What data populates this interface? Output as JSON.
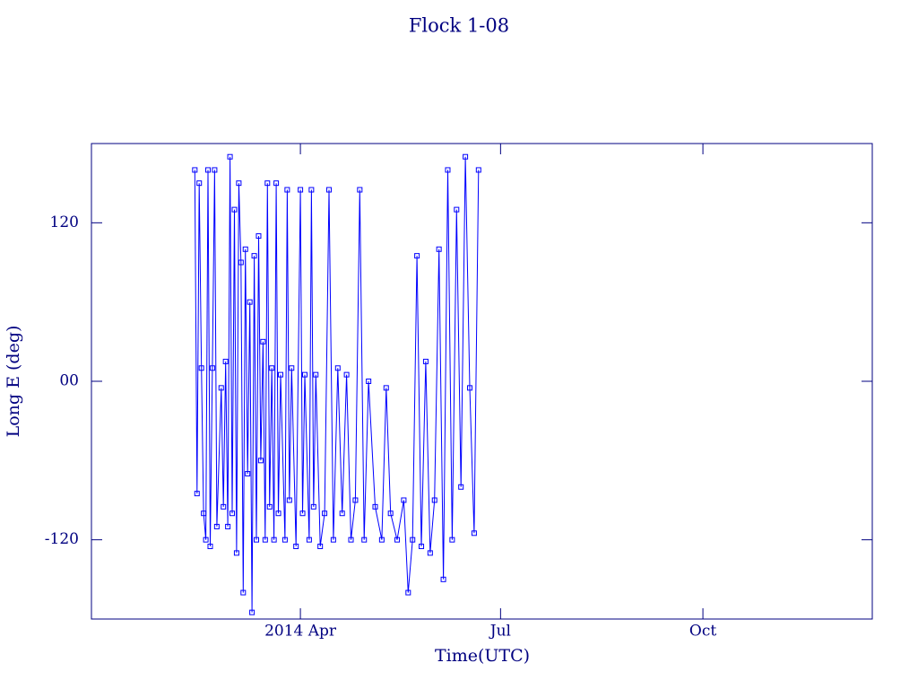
{
  "chart_data": {
    "type": "line",
    "title": "Flock 1-08",
    "x_label": "Time(UTC)",
    "y_label": "Long E (deg)",
    "color": "#0000ff",
    "axis_color": "#000080",
    "xlim": [
      "2013-12-27",
      "2014-12-17"
    ],
    "xticks": [
      {
        "value": "2014-04-01",
        "label": "2014 Apr"
      },
      {
        "value": "2014-07-01",
        "label": "Jul"
      },
      {
        "value": "2014-10-01",
        "label": "Oct"
      }
    ],
    "ylim": [
      -180,
      180
    ],
    "yticks": [
      -120,
      {
        "value": 0,
        "label": "00"
      },
      120
    ],
    "x": [
      "2014-02-12",
      "2014-02-13",
      "2014-02-14",
      "2014-02-15",
      "2014-02-16",
      "2014-02-17",
      "2014-02-18",
      "2014-02-19",
      "2014-02-20",
      "2014-02-21",
      "2014-02-22",
      "2014-02-24",
      "2014-02-25",
      "2014-02-26",
      "2014-02-27",
      "2014-02-28",
      "2014-03-01",
      "2014-03-02",
      "2014-03-03",
      "2014-03-04",
      "2014-03-05",
      "2014-03-06",
      "2014-03-07",
      "2014-03-08",
      "2014-03-09",
      "2014-03-10",
      "2014-03-11",
      "2014-03-12",
      "2014-03-13",
      "2014-03-14",
      "2014-03-15",
      "2014-03-16",
      "2014-03-17",
      "2014-03-18",
      "2014-03-19",
      "2014-03-20",
      "2014-03-21",
      "2014-03-22",
      "2014-03-23",
      "2014-03-25",
      "2014-03-26",
      "2014-03-27",
      "2014-03-28",
      "2014-03-30",
      "2014-04-01",
      "2014-04-02",
      "2014-04-03",
      "2014-04-05",
      "2014-04-06",
      "2014-04-07",
      "2014-04-08",
      "2014-04-10",
      "2014-04-12",
      "2014-04-14",
      "2014-04-16",
      "2014-04-18",
      "2014-04-20",
      "2014-04-22",
      "2014-04-24",
      "2014-04-26",
      "2014-04-28",
      "2014-04-30",
      "2014-05-02",
      "2014-05-05",
      "2014-05-08",
      "2014-05-10",
      "2014-05-12",
      "2014-05-15",
      "2014-05-18",
      "2014-05-20",
      "2014-05-22",
      "2014-05-24",
      "2014-05-26",
      "2014-05-28",
      "2014-05-30",
      "2014-06-01",
      "2014-06-03",
      "2014-06-05",
      "2014-06-07",
      "2014-06-09",
      "2014-06-11",
      "2014-06-13",
      "2014-06-15",
      "2014-06-17",
      "2014-06-19",
      "2014-06-21"
    ],
    "values": [
      160,
      -85,
      150,
      10,
      -100,
      -120,
      160,
      -125,
      10,
      160,
      -110,
      -5,
      -95,
      15,
      -110,
      170,
      -100,
      130,
      -130,
      150,
      90,
      -160,
      100,
      -70,
      60,
      -175,
      95,
      -120,
      110,
      -60,
      30,
      -120,
      150,
      -95,
      10,
      -120,
      150,
      -100,
      5,
      -120,
      145,
      -90,
      10,
      -125,
      145,
      -100,
      5,
      -120,
      145,
      -95,
      5,
      -125,
      -100,
      145,
      -120,
      10,
      -100,
      5,
      -120,
      -90,
      145,
      -120,
      0,
      -95,
      -120,
      -5,
      -100,
      -120,
      -90,
      -160,
      -120,
      95,
      -125,
      15,
      -130,
      -90,
      100,
      -150,
      160,
      -120,
      130,
      -80,
      170,
      -5,
      -115,
      160
    ]
  }
}
